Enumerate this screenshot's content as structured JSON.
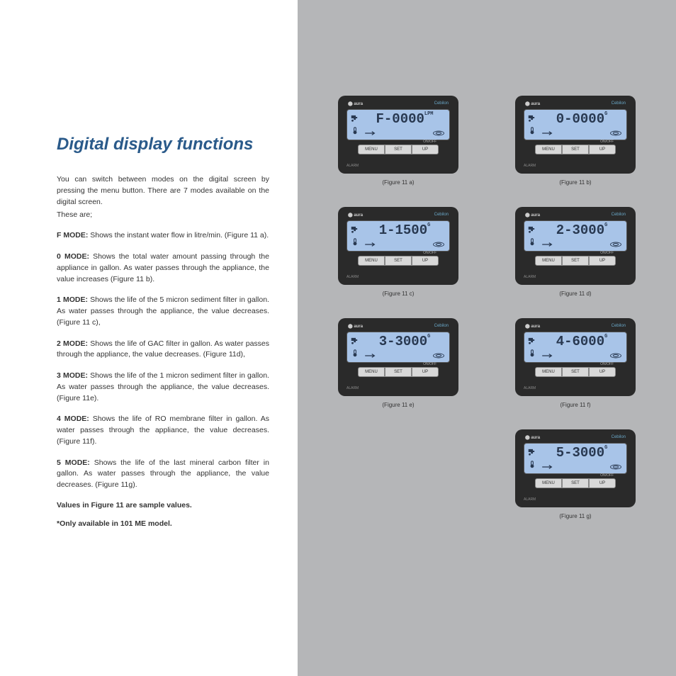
{
  "title": "Digital display functions",
  "intro": "You can switch between modes on the digital screen by pressing the menu button. There are 7 modes available on the digital screen.",
  "intro_sub": "These are;",
  "modes": [
    {
      "label": "F MODE:",
      "text": " Shows the instant water flow in litre/min. (Figure 11 a)."
    },
    {
      "label": "0 MODE:",
      "text": " Shows the total water amount passing through the appliance in gallon. As water passes through the appliance, the value increases (Figure 11 b)."
    },
    {
      "label": "1 MODE:",
      "text": " Shows the life of the 5 micron sediment filter in gallon. As water passes through the appliance, the value decreases. (Figure 11 c),"
    },
    {
      "label": "2 MODE:",
      "text": " Shows the life of GAC filter in gallon. As water passes through the appliance, the value decreases. (Figure 11d),"
    },
    {
      "label": "3 MODE:",
      "text": " Shows the life of the 1 micron sediment filter in gallon. As water passes through the appliance, the value decreases. (Figure 11e)."
    },
    {
      "label": "4 MODE:",
      "text": " Shows the life of RO membrane filter in gallon. As water passes through the appliance, the value decreases. (Figure 11f)."
    },
    {
      "label": "5 MODE:",
      "text": " Shows the life of the last mineral carbon filter in gallon. As water passes through the appliance, the value decreases. (Figure 11g)."
    }
  ],
  "note1": "Values in Figure 11 are sample values.",
  "note2": "*Only available in 101 ME model.",
  "device": {
    "brand_left": "aura",
    "brand_right": "Cebilon",
    "buttons": [
      "MENU",
      "SET",
      "UP"
    ],
    "onoff": "ON/OFF",
    "alarm": "ALARM"
  },
  "figures": [
    {
      "lcd": "F-0000",
      "unit": "LPM",
      "caption": "(Figure 11 a)"
    },
    {
      "lcd": "0-0000",
      "unit": "G",
      "caption": "(Figure 11 b)"
    },
    {
      "lcd": "1-1500",
      "unit": "G",
      "caption": "(Figure 11 c)"
    },
    {
      "lcd": "2-3000",
      "unit": "G",
      "caption": "(Figure 11 d)"
    },
    {
      "lcd": "3-3000",
      "unit": "G",
      "caption": "(Figure 11 e)"
    },
    {
      "lcd": "4-6000",
      "unit": "G",
      "caption": "(Figure 11 f)"
    },
    {
      "lcd": "5-3000",
      "unit": "G",
      "caption": "(Figure 11 g)"
    }
  ],
  "colors": {
    "title": "#2a5a8a",
    "right_bg": "#b5b6b8",
    "device_bg": "#2a2a2a",
    "lcd_bg": "#a8c4e8",
    "lcd_text": "#283850",
    "btn_bg": "#d8d8d8"
  }
}
